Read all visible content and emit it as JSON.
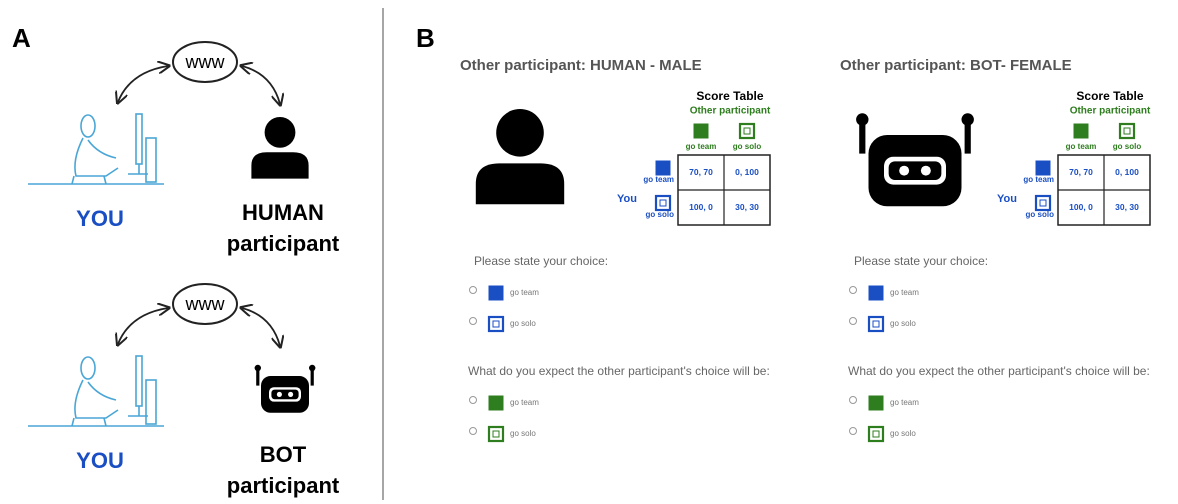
{
  "panel_a": {
    "label": "A",
    "scenes": [
      {
        "web": "www",
        "you": "YOU",
        "partner": [
          "HUMAN",
          "participant"
        ]
      },
      {
        "web": "www",
        "you": "YOU",
        "partner": [
          "BOT",
          "participant"
        ]
      }
    ]
  },
  "panel_b": {
    "label": "B",
    "screens": [
      {
        "header": "Other participant: HUMAN - MALE",
        "table": {
          "title": "Score Table",
          "column_header": "Other participant",
          "row_header": "You",
          "options": [
            "go team",
            "go solo"
          ],
          "cells": [
            [
              "70, 70",
              "0, 100"
            ],
            [
              "100, 0",
              "30, 30"
            ]
          ]
        },
        "question_choice": "Please state your choice:",
        "choices": [
          "go team",
          "go solo"
        ],
        "question_expect": "What do you expect the other participant's choice will be:",
        "expectations": [
          "go team",
          "go solo"
        ]
      },
      {
        "header": "Other participant: BOT- FEMALE",
        "table": {
          "title": "Score Table",
          "column_header": "Other participant",
          "row_header": "You",
          "options": [
            "go team",
            "go solo"
          ],
          "cells": [
            [
              "70, 70",
              "0, 100"
            ],
            [
              "100, 0",
              "30, 30"
            ]
          ]
        },
        "question_choice": "Please state your choice:",
        "choices": [
          "go team",
          "go solo"
        ],
        "question_expect": "What do you expect the other participant's choice will be:",
        "expectations": [
          "go team",
          "go solo"
        ]
      }
    ]
  }
}
